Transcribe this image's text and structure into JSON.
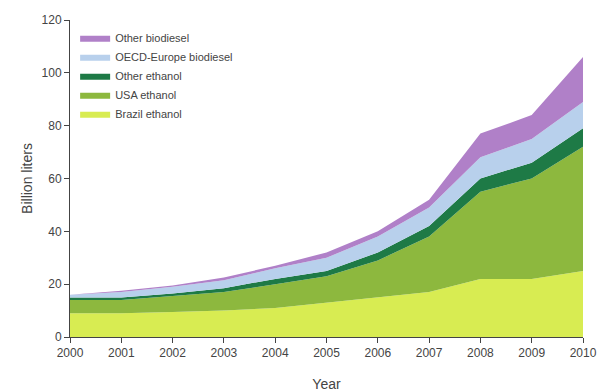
{
  "chart_data": {
    "type": "area",
    "stacked": true,
    "xlabel": "Year",
    "ylabel": "Billion liters",
    "x": [
      2000,
      2001,
      2002,
      2003,
      2004,
      2005,
      2006,
      2007,
      2008,
      2009,
      2010
    ],
    "xlim": [
      2000,
      2010
    ],
    "xticks": [
      2000,
      2001,
      2002,
      2003,
      2004,
      2005,
      2006,
      2007,
      2008,
      2009,
      2010
    ],
    "ylim": [
      0,
      120
    ],
    "yticks": [
      0,
      20,
      40,
      60,
      80,
      100,
      120
    ],
    "grid": false,
    "legend": "upper left",
    "series": [
      {
        "name": "Brazil ethanol",
        "color": "#d8ec52",
        "values": [
          9,
          9,
          9.5,
          10,
          11,
          13,
          15,
          17,
          22,
          22,
          25
        ]
      },
      {
        "name": "USA ethanol",
        "color": "#8db83e",
        "values": [
          5,
          5,
          6,
          7,
          9,
          10,
          14,
          21,
          33,
          38,
          47
        ]
      },
      {
        "name": "Other ethanol",
        "color": "#1e7a46",
        "values": [
          1,
          1,
          1,
          1.5,
          2,
          2,
          3,
          4,
          5,
          6,
          7
        ]
      },
      {
        "name": "OECD-Europe biodiesel",
        "color": "#b8d0ec",
        "values": [
          1,
          2,
          2.5,
          3,
          4,
          5,
          6,
          7,
          8,
          9,
          10
        ]
      },
      {
        "name": "Other biodiesel",
        "color": "#b080c8",
        "values": [
          0,
          0.5,
          0.5,
          1,
          1,
          2,
          2,
          3,
          9,
          9,
          17
        ]
      }
    ]
  }
}
